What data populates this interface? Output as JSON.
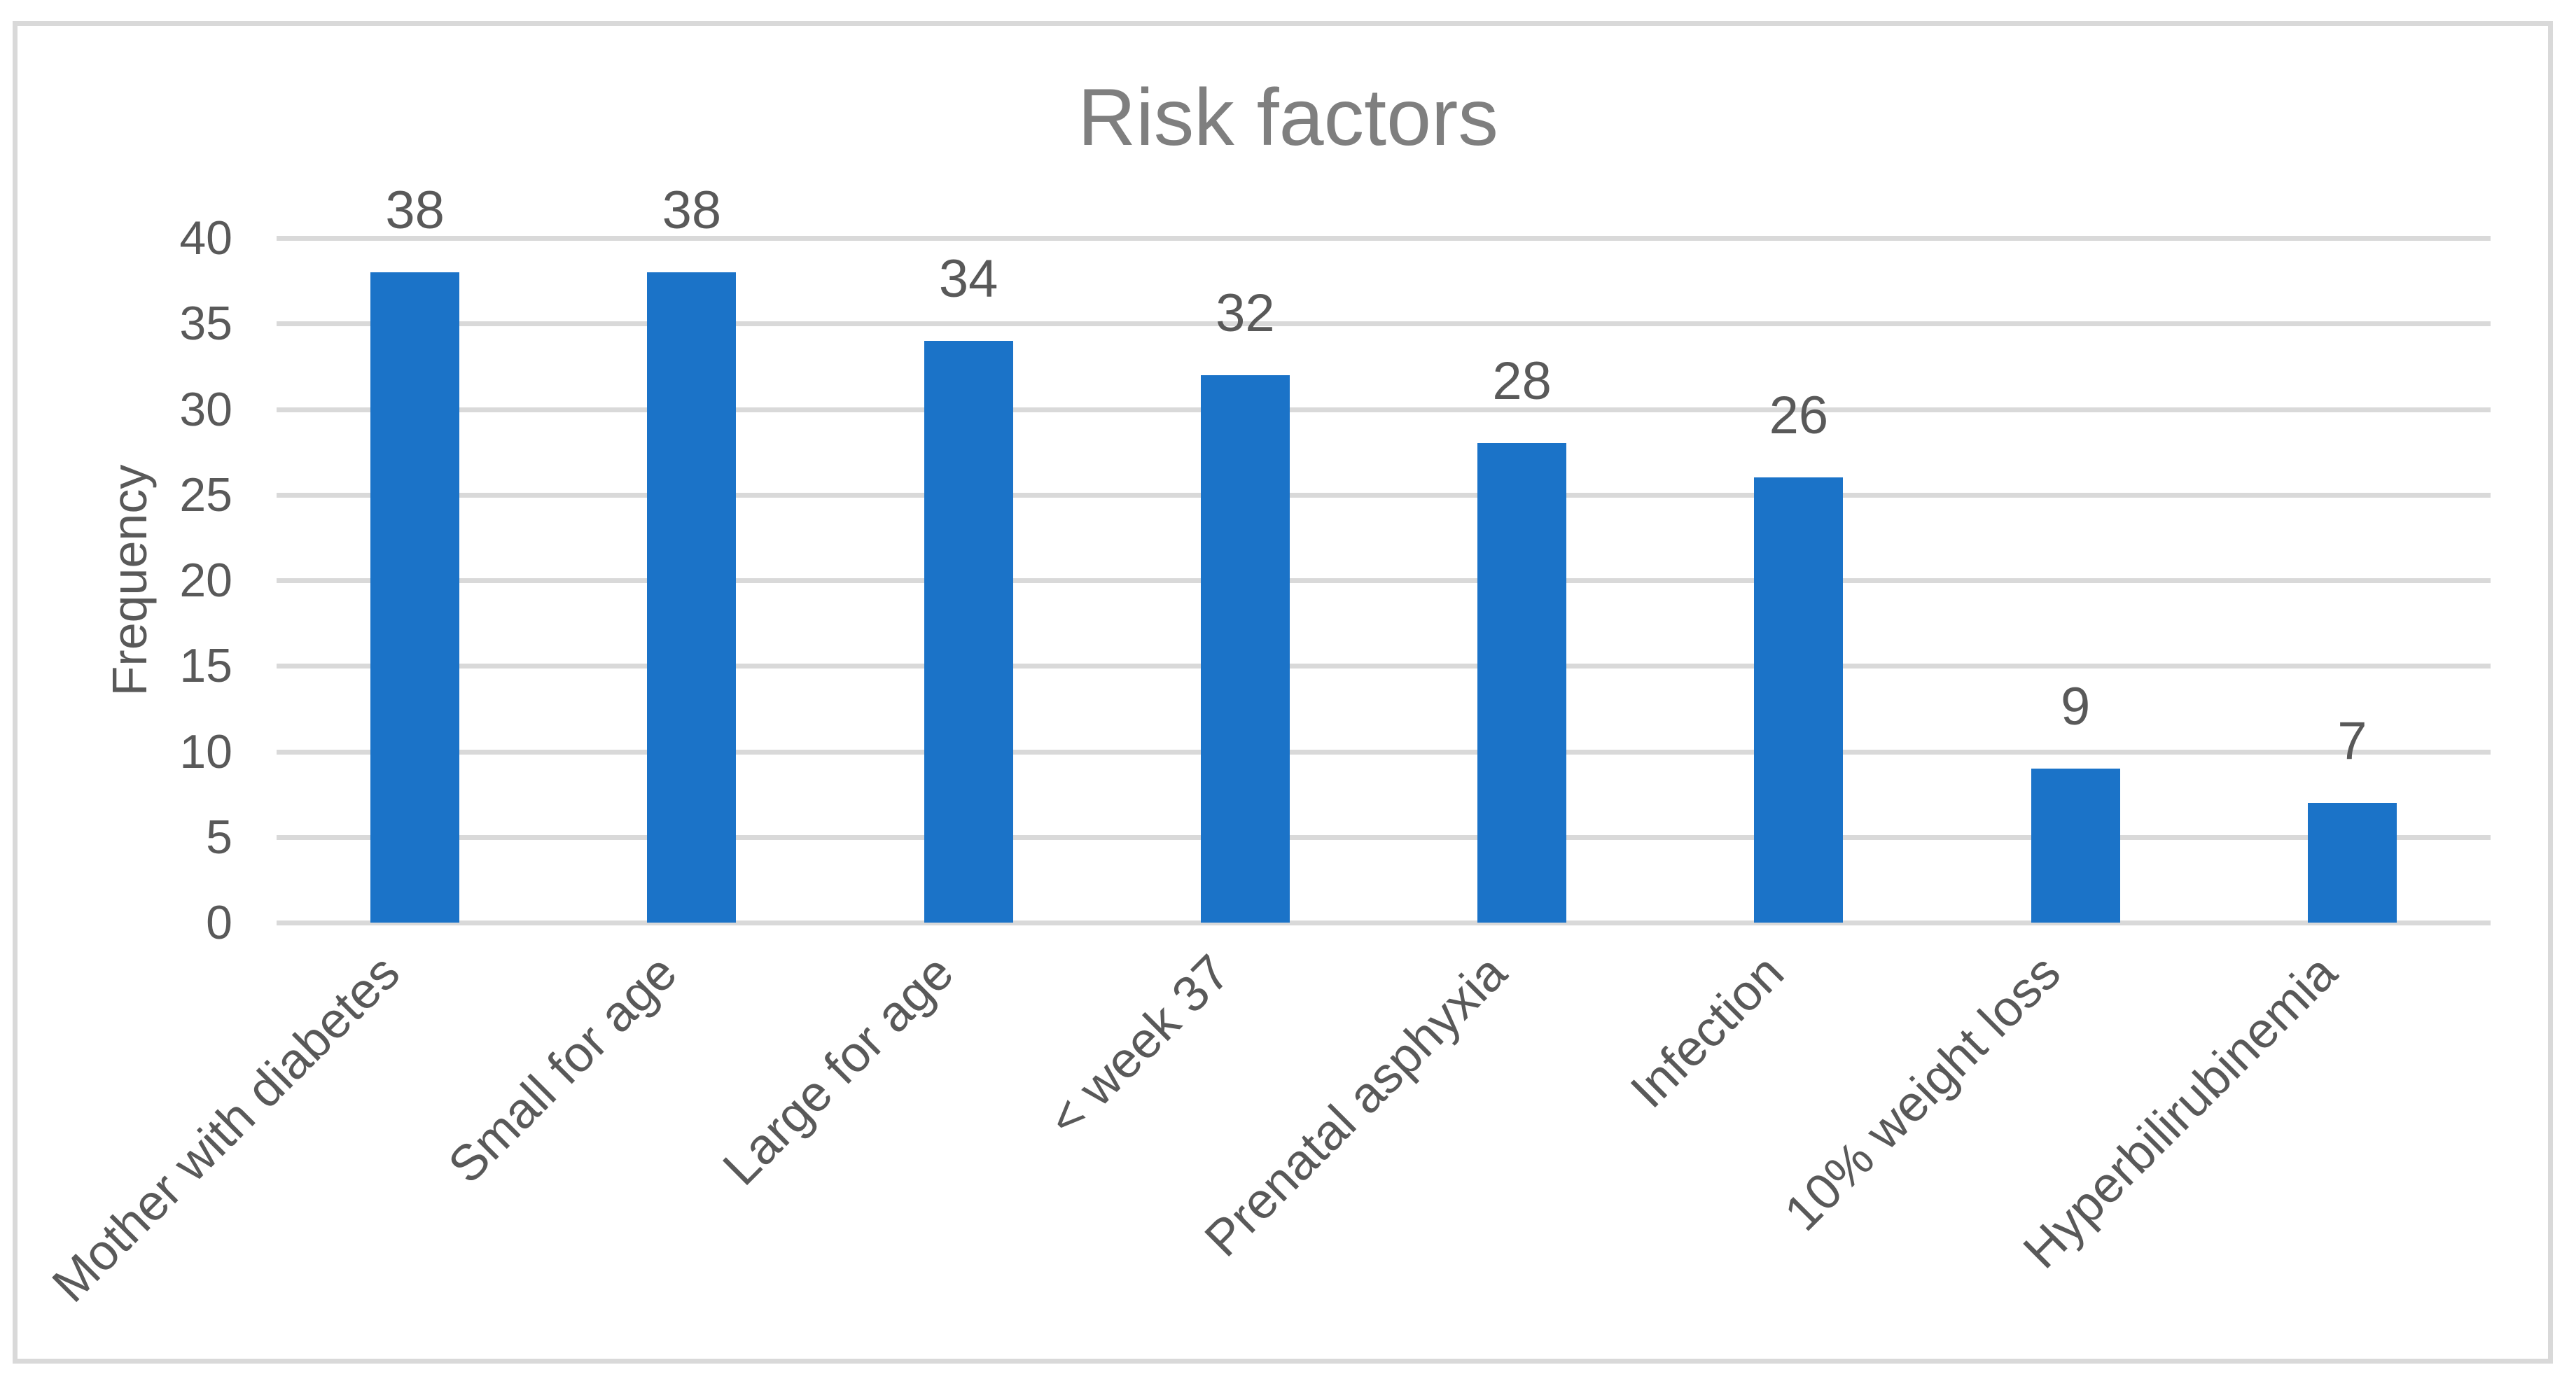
{
  "chart_data": {
    "type": "bar",
    "title": "Risk factors",
    "ylabel": "Frequency",
    "xlabel": "",
    "categories": [
      "Mother with diabetes",
      "Small for age",
      "Large for age",
      "< week 37",
      "Prenatal asphyxia",
      "Infection",
      "10% weight loss",
      "Hyperbilirubinemia"
    ],
    "values": [
      38,
      38,
      34,
      32,
      28,
      26,
      9,
      7
    ],
    "data_labels_shown": true,
    "y_ticks": [
      0,
      5,
      10,
      15,
      20,
      25,
      30,
      35,
      40
    ],
    "ylim": [
      0,
      40
    ],
    "grid": true,
    "legend_position": "none",
    "colors": {
      "bar": "#1B73C8",
      "title_text": "#7F7F7F",
      "axis_text": "#595959",
      "gridline": "#D9D9D9",
      "frame_border": "#D9D9D9",
      "background": "#FFFFFF"
    }
  }
}
